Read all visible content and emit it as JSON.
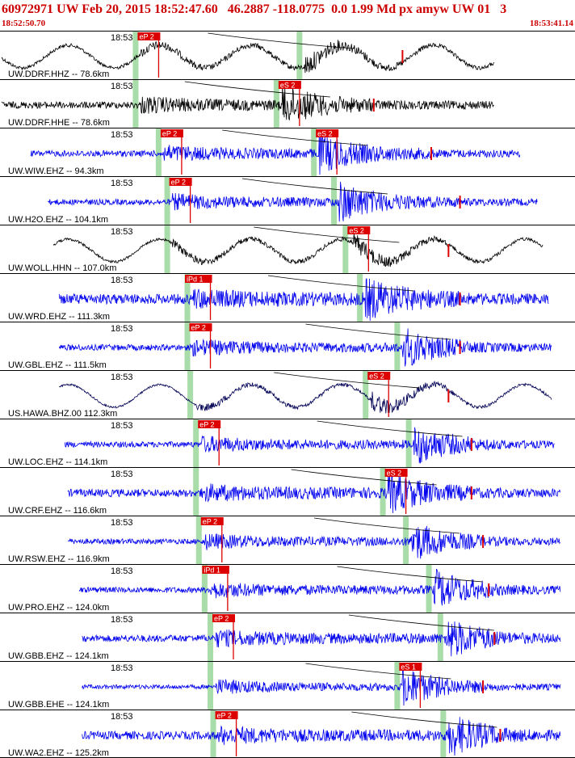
{
  "header": {
    "title": "60972971 UW Feb 20, 2015 18:52:47.60   46.2887 -118.0775  0.0 1.99 Md px amyw UW 01   3",
    "start_time": "18:52:50.70",
    "end_time": "18:53:41.14"
  },
  "chart_data": {
    "type": "line",
    "title": "60972971 UW Feb 20, 2015 18:52:47.60   46.2887 -118.0775  0.0 1.99 Md px amyw UW 01   3",
    "x_range_time": [
      "18:52:50.70",
      "18:53:41.14"
    ],
    "minute_label": "18:53",
    "trace_colors": {
      "vertical": "#0000ee",
      "horizontal": "#000000",
      "pick": "#dd0000",
      "window": "#a8dca8"
    },
    "traces": [
      {
        "label": "UW.DDRF.HHZ -- 78.6km",
        "color": "#000000",
        "start": 0.0,
        "end": 0.86,
        "lowfreq": 1,
        "noise": 0.45,
        "p_pick": "eP 2",
        "p": 0.245,
        "s_pick": "",
        "s": 0.53,
        "coda": 0.7
      },
      {
        "label": "UW.DDRF.HHE -- 78.6km",
        "color": "#000000",
        "start": 0.0,
        "end": 0.86,
        "lowfreq": 0,
        "noise": 0.45,
        "p_pick": "",
        "p": 0.245,
        "s_pick": "eS 2",
        "s": 0.49,
        "coda": 0.65
      },
      {
        "label": "UW.WIW.EHZ -- 94.3km",
        "color": "#0000ee",
        "start": 0.05,
        "end": 0.905,
        "lowfreq": 0,
        "noise": 0.35,
        "p_pick": "eP 2",
        "p": 0.285,
        "s_pick": "eS 2",
        "s": 0.555,
        "coda": 0.75
      },
      {
        "label": "UW.H2O.EHZ -- 104.1km",
        "color": "#0000ee",
        "start": 0.08,
        "end": 0.935,
        "lowfreq": 0,
        "noise": 0.3,
        "p_pick": "eP 2",
        "p": 0.3,
        "s_pick": "",
        "s": 0.59,
        "coda": 0.8
      },
      {
        "label": "UW.WOLL.HHN -- 107.0km",
        "color": "#000000",
        "start": 0.09,
        "end": 0.945,
        "lowfreq": 1,
        "noise": 0.25,
        "p_pick": "",
        "p": 0.3,
        "s_pick": "eS 2",
        "s": 0.61,
        "coda": 0.78
      },
      {
        "label": "UW.WRD.EHZ -- 111.3km",
        "color": "#0000ee",
        "start": 0.1,
        "end": 0.955,
        "lowfreq": 0,
        "noise": 0.85,
        "p_pick": "iPd 1",
        "p": 0.335,
        "s_pick": "",
        "s": 0.635,
        "coda": 0.8
      },
      {
        "label": "UW.GBL.EHZ -- 111.5km",
        "color": "#0000ee",
        "start": 0.1,
        "end": 0.96,
        "lowfreq": 0,
        "noise": 0.35,
        "p_pick": "eP 2",
        "p": 0.335,
        "s_pick": "",
        "s": 0.7,
        "coda": 0.8
      },
      {
        "label": "US.HAWA.BHZ.00 112.3km",
        "color": "#000055",
        "start": 0.1,
        "end": 0.96,
        "lowfreq": 1,
        "noise": 0.08,
        "p_pick": "",
        "p": 0.34,
        "s_pick": "eS 2",
        "s": 0.645,
        "coda": 0.78
      },
      {
        "label": "UW.LOC.EHZ -- 114.1km",
        "color": "#0000ee",
        "start": 0.11,
        "end": 0.965,
        "lowfreq": 0,
        "noise": 0.3,
        "p_pick": "eP 2",
        "p": 0.35,
        "s_pick": "",
        "s": 0.72,
        "coda": 0.82
      },
      {
        "label": "UW.CRF.EHZ -- 116.6km",
        "color": "#0000ee",
        "start": 0.115,
        "end": 0.975,
        "lowfreq": 0,
        "noise": 0.55,
        "p_pick": "",
        "p": 0.35,
        "s_pick": "eS 2",
        "s": 0.675,
        "coda": 0.82
      },
      {
        "label": "UW.RSW.EHZ -- 116.9km",
        "color": "#0000ee",
        "start": 0.115,
        "end": 0.975,
        "lowfreq": 0,
        "noise": 0.25,
        "p_pick": "eP 2",
        "p": 0.355,
        "s_pick": "",
        "s": 0.715,
        "coda": 0.84
      },
      {
        "label": "UW.PRO.EHZ -- 124.0km",
        "color": "#0000ee",
        "start": 0.135,
        "end": 0.975,
        "lowfreq": 0,
        "noise": 0.3,
        "p_pick": "iPd 1",
        "p": 0.365,
        "s_pick": "",
        "s": 0.755,
        "coda": 0.85
      },
      {
        "label": "UW.GBB.EHZ -- 124.1km",
        "color": "#0000ee",
        "start": 0.14,
        "end": 0.975,
        "lowfreq": 0,
        "noise": 0.45,
        "p_pick": "eP 2",
        "p": 0.375,
        "s_pick": "",
        "s": 0.775,
        "coda": 0.86
      },
      {
        "label": "UW.GBB.EHE -- 124.1km",
        "color": "#0000ee",
        "start": 0.14,
        "end": 0.975,
        "lowfreq": 0,
        "noise": 0.12,
        "p_pick": "",
        "p": 0.375,
        "s_pick": "eS 1",
        "s": 0.7,
        "coda": 0.84
      },
      {
        "label": "UW.WA2.EHZ -- 125.2km",
        "color": "#0000ee",
        "start": 0.14,
        "end": 0.975,
        "lowfreq": 0,
        "noise": 0.6,
        "p_pick": "eP 2",
        "p": 0.38,
        "s_pick": "",
        "s": 0.78,
        "coda": 0.87
      }
    ]
  }
}
